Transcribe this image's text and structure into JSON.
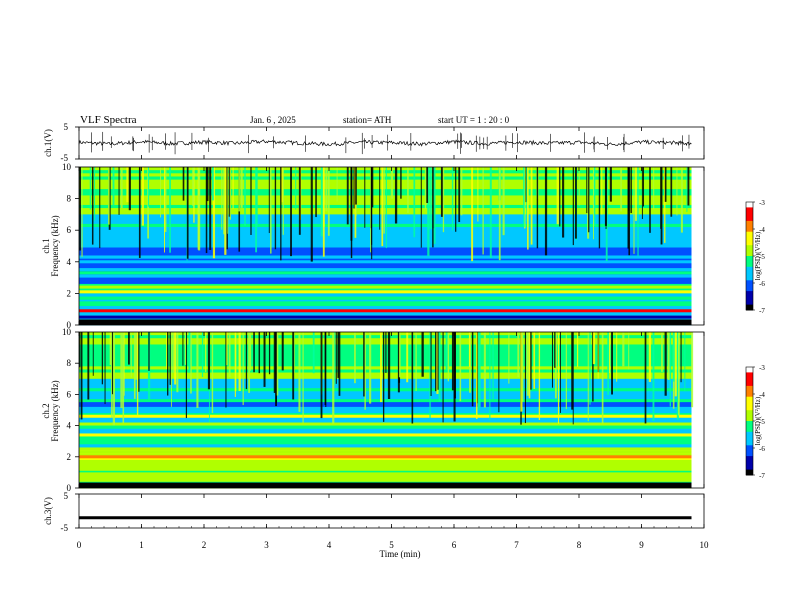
{
  "header": {
    "title": "VLF  Spectra",
    "date": "Jan. 6  , 2025",
    "station": "station= ATH",
    "start": "start  UT  =   1  : 20 : 0"
  },
  "chart_data": [
    {
      "type": "line",
      "name": "ch1-waveform",
      "ylabel": "ch.1(V)",
      "yticks": [
        "5",
        "-5"
      ],
      "ylim": [
        -5,
        5
      ],
      "xlim": [
        0,
        10
      ],
      "x": [
        0,
        0.5,
        1,
        1.5,
        2,
        2.5,
        3,
        3.5,
        4,
        4.5,
        5,
        5.5,
        6,
        6.5,
        7,
        7.5,
        8,
        8.5,
        9,
        9.5,
        9.8
      ],
      "y": [
        0.2,
        -0.3,
        0.4,
        -0.2,
        0.3,
        -0.1,
        0.5,
        0.0,
        -0.4,
        0.2,
        0.1,
        -0.3,
        0.4,
        -0.2,
        0.3,
        -0.1,
        0.2,
        -0.4,
        0.3,
        0.1,
        -0.2
      ]
    },
    {
      "type": "heatmap",
      "name": "ch1-spectrogram",
      "ylabel_channel": "ch.1",
      "ylabel": "Frequency  (kHz)",
      "yticks": [
        "10",
        "8",
        "6",
        "4",
        "2",
        "0"
      ],
      "ylim": [
        0,
        10
      ],
      "xlim": [
        0,
        10
      ],
      "colorbar": {
        "label": "log(PSD)(V²/Hz)",
        "ticks": [
          "-3",
          "-4",
          "-5",
          "-6",
          "-7"
        ],
        "range": [
          -7,
          -3
        ]
      },
      "data_end_min": 9.8,
      "bands_khz": [
        {
          "freq": 0.2,
          "level": -7.0
        },
        {
          "freq": 0.5,
          "level": -6.5
        },
        {
          "freq": 0.9,
          "level": -3.6
        },
        {
          "freq": 1.4,
          "level": -5.2
        },
        {
          "freq": 2.1,
          "level": -4.5
        },
        {
          "freq": 2.4,
          "level": -4.8
        },
        {
          "freq": 3.3,
          "level": -5.2
        },
        {
          "freq": 4.0,
          "level": -5.8
        },
        {
          "freq": 5.0,
          "level": -5.6
        }
      ]
    },
    {
      "type": "heatmap",
      "name": "ch2-spectrogram",
      "ylabel_channel": "ch.2",
      "ylabel": "Frequency  (kHz)",
      "yticks": [
        "10",
        "8",
        "6",
        "4",
        "2",
        "0"
      ],
      "ylim": [
        0,
        10
      ],
      "xlim": [
        0,
        10
      ],
      "colorbar": {
        "label": "log(PSD)(V²/Hz)",
        "ticks": [
          "-3",
          "-4",
          "-5",
          "-6",
          "-7"
        ],
        "range": [
          -7,
          -3
        ]
      },
      "data_end_min": 9.8,
      "bands_khz": [
        {
          "freq": 0.2,
          "level": -7.0
        },
        {
          "freq": 0.6,
          "level": -4.9
        },
        {
          "freq": 1.2,
          "level": -5.0
        },
        {
          "freq": 2.0,
          "level": -3.8
        },
        {
          "freq": 2.3,
          "level": -4.6
        },
        {
          "freq": 3.4,
          "level": -4.3
        },
        {
          "freq": 4.1,
          "level": -5.0
        },
        {
          "freq": 4.6,
          "level": -4.2
        },
        {
          "freq": 5.6,
          "level": -5.4
        }
      ]
    },
    {
      "type": "line",
      "name": "ch3-waveform",
      "ylabel": "ch.3(V)",
      "yticks": [
        "5",
        "-5"
      ],
      "ylim": [
        -5,
        5
      ],
      "xlim": [
        0,
        10
      ],
      "x": [
        0,
        9.8
      ],
      "y": [
        -2.0,
        -2.0
      ]
    }
  ],
  "xaxis": {
    "label": "Time  (min)",
    "ticks": [
      "0",
      "1",
      "2",
      "3",
      "4",
      "5",
      "6",
      "7",
      "8",
      "9",
      "10"
    ]
  },
  "colors": {
    "colormap": [
      "#000000",
      "#00008b",
      "#0000ff",
      "#00bfff",
      "#00ff7f",
      "#adff2f",
      "#ffff00",
      "#ff8c00",
      "#ff0000",
      "#ffffff"
    ]
  }
}
